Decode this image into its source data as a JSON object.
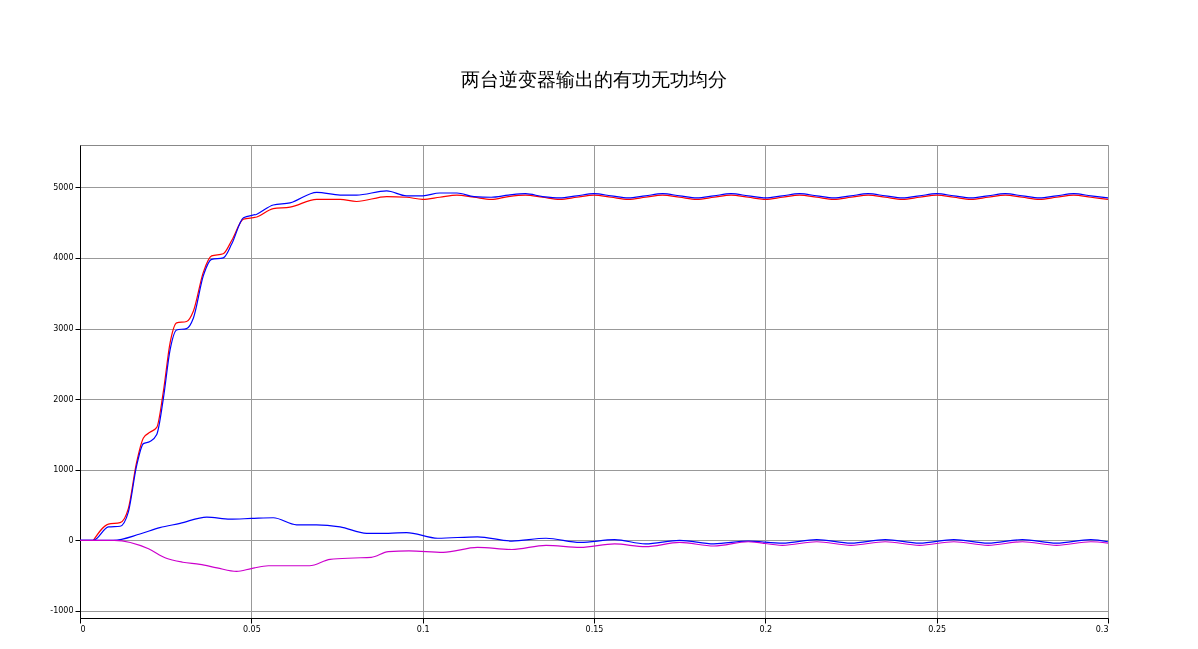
{
  "chart_data": {
    "type": "line",
    "title": "两台逆变器输出的有功无功均分",
    "xlim": [
      0,
      0.3
    ],
    "xticks": [
      0,
      0.05,
      0.1,
      0.15,
      0.2,
      0.25,
      0.3
    ],
    "ylim": [
      -1100,
      5600
    ],
    "yticks": [
      -1000,
      0,
      1000,
      2000,
      3000,
      4000,
      5000
    ],
    "grid": true,
    "legend": false,
    "line_style": "solid",
    "series": [
      {
        "color": "#ff0000",
        "x": [
          0.0039,
          0.0083,
          0.0117,
          0.0141,
          0.0165,
          0.0185,
          0.0204,
          0.0224,
          0.0243,
          0.0263,
          0.0282,
          0.0311,
          0.0331,
          0.036,
          0.0384,
          0.0418,
          0.0443,
          0.0477,
          0.0516,
          0.0564,
          0.0613,
          0.0691,
          0.0759,
          0.0807,
          0.0895,
          0.0953,
          0.1,
          0.105,
          0.11,
          0.115,
          0.12,
          0.125,
          0.13,
          0.135,
          0.14,
          0.145,
          0.15,
          0.155,
          0.16,
          0.165,
          0.17,
          0.175,
          0.18,
          0.185,
          0.19,
          0.195,
          0.2,
          0.205,
          0.21,
          0.215,
          0.22,
          0.225,
          0.23,
          0.235,
          0.24,
          0.245,
          0.25,
          0.255,
          0.26,
          0.265,
          0.27,
          0.275,
          0.28,
          0.285,
          0.29,
          0.295,
          0.3
        ],
        "values": [
          0,
          230,
          250,
          450,
          1100,
          1450,
          1530,
          1600,
          2100,
          2800,
          3080,
          3100,
          3250,
          3800,
          4030,
          4060,
          4250,
          4550,
          4580,
          4700,
          4720,
          4830,
          4830,
          4800,
          4870,
          4860,
          4830,
          4860,
          4890,
          4860,
          4830,
          4870,
          4890,
          4860,
          4830,
          4860,
          4890,
          4860,
          4830,
          4860,
          4890,
          4860,
          4830,
          4860,
          4890,
          4860,
          4830,
          4860,
          4890,
          4860,
          4830,
          4860,
          4890,
          4860,
          4830,
          4860,
          4890,
          4860,
          4830,
          4860,
          4890,
          4860,
          4830,
          4860,
          4890,
          4860,
          4830
        ]
      },
      {
        "color": "#0000ff",
        "x": [
          0,
          0.0039,
          0.0083,
          0.0117,
          0.0141,
          0.0165,
          0.0185,
          0.0204,
          0.0224,
          0.0243,
          0.0263,
          0.0282,
          0.0311,
          0.0331,
          0.036,
          0.0384,
          0.0418,
          0.0443,
          0.0477,
          0.0516,
          0.0564,
          0.0613,
          0.0691,
          0.0759,
          0.0807,
          0.0895,
          0.0953,
          0.1,
          0.105,
          0.11,
          0.115,
          0.12,
          0.125,
          0.13,
          0.135,
          0.14,
          0.145,
          0.15,
          0.155,
          0.16,
          0.165,
          0.17,
          0.175,
          0.18,
          0.185,
          0.19,
          0.195,
          0.2,
          0.205,
          0.21,
          0.215,
          0.22,
          0.225,
          0.23,
          0.235,
          0.24,
          0.245,
          0.25,
          0.255,
          0.26,
          0.265,
          0.27,
          0.275,
          0.28,
          0.285,
          0.29,
          0.295,
          0.3
        ],
        "values": [
          0,
          0,
          190,
          200,
          400,
          1050,
          1370,
          1400,
          1500,
          2000,
          2700,
          2980,
          3000,
          3150,
          3750,
          3980,
          4000,
          4200,
          4570,
          4620,
          4750,
          4780,
          4930,
          4890,
          4890,
          4950,
          4880,
          4880,
          4920,
          4920,
          4870,
          4860,
          4890,
          4910,
          4870,
          4850,
          4880,
          4910,
          4880,
          4850,
          4880,
          4910,
          4880,
          4850,
          4880,
          4910,
          4880,
          4850,
          4880,
          4910,
          4880,
          4850,
          4880,
          4910,
          4880,
          4850,
          4880,
          4910,
          4880,
          4850,
          4880,
          4910,
          4880,
          4850,
          4880,
          4910,
          4880,
          4850
        ]
      },
      {
        "color": "#0000ff",
        "x": [
          0,
          0.0097,
          0.0175,
          0.0233,
          0.0292,
          0.037,
          0.0438,
          0.05,
          0.0564,
          0.0632,
          0.069,
          0.0759,
          0.0837,
          0.09,
          0.0953,
          0.1044,
          0.116,
          0.126,
          0.136,
          0.146,
          0.156,
          0.165,
          0.175,
          0.185,
          0.195,
          0.205,
          0.215,
          0.225,
          0.235,
          0.245,
          0.255,
          0.265,
          0.275,
          0.285,
          0.295,
          0.3
        ],
        "values": [
          0,
          0,
          90,
          180,
          240,
          330,
          300,
          310,
          320,
          220,
          220,
          190,
          100,
          100,
          110,
          30,
          50,
          -10,
          30,
          -30,
          10,
          -50,
          0,
          -50,
          -10,
          -40,
          10,
          -40,
          10,
          -40,
          10,
          -40,
          10,
          -40,
          10,
          -20
        ]
      },
      {
        "color": "#cc00cc",
        "x": [
          0,
          0.01,
          0.02,
          0.025,
          0.03,
          0.035,
          0.04,
          0.0457,
          0.05,
          0.055,
          0.06,
          0.067,
          0.073,
          0.08,
          0.085,
          0.09,
          0.096,
          0.106,
          0.116,
          0.126,
          0.136,
          0.146,
          0.156,
          0.165,
          0.175,
          0.185,
          0.195,
          0.205,
          0.215,
          0.225,
          0.235,
          0.245,
          0.255,
          0.265,
          0.275,
          0.285,
          0.295,
          0.3
        ],
        "values": [
          0,
          0,
          -120,
          -250,
          -310,
          -340,
          -390,
          -440,
          -400,
          -360,
          -360,
          -360,
          -270,
          -250,
          -240,
          -160,
          -150,
          -170,
          -100,
          -130,
          -70,
          -100,
          -50,
          -90,
          -30,
          -80,
          -20,
          -70,
          -20,
          -70,
          -20,
          -70,
          -20,
          -70,
          -20,
          -70,
          -20,
          -40
        ]
      }
    ]
  }
}
